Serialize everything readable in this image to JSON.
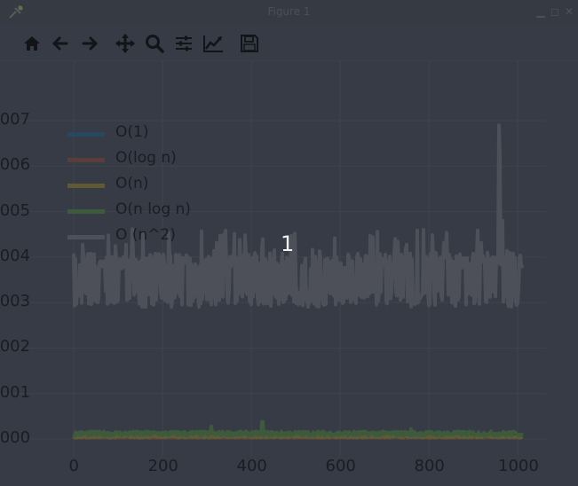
{
  "window": {
    "title": "Figure 1",
    "figure_number": "1",
    "controls": [
      "minimize-icon",
      "maximize-icon",
      "close-icon"
    ]
  },
  "toolbar": {
    "buttons": [
      {
        "name": "home-icon"
      },
      {
        "name": "back-arrow-icon"
      },
      {
        "name": "forward-arrow-icon"
      },
      {
        "name": "pan-icon"
      },
      {
        "name": "zoom-icon"
      },
      {
        "name": "subplots-icon"
      },
      {
        "name": "edit-axes-icon"
      },
      {
        "name": "save-icon"
      }
    ]
  },
  "colors": {
    "background": "#363b45",
    "grid": "#3f444e",
    "text": "#1a1d22",
    "O1": "#27485e",
    "Olog": "#5a3e3a",
    "On": "#5f5a33",
    "Onlogn": "#3e5a3d",
    "On2": "#4d5059"
  },
  "chart_data": {
    "type": "line",
    "title": "",
    "xlabel": "",
    "ylabel": "",
    "xlim": [
      -40,
      1110
    ],
    "ylim": [
      -0.0002,
      0.0075
    ],
    "xticks": [
      0,
      200,
      400,
      600,
      800,
      1000
    ],
    "xtick_labels": [
      "0",
      "200",
      "400",
      "600",
      "800",
      "1000"
    ],
    "yticks": [
      0.0,
      0.001,
      0.002,
      0.003,
      0.004,
      0.005,
      0.006,
      0.007
    ],
    "ytick_labels": [
      ".000",
      ".001",
      ".002",
      ".003",
      ".004",
      ".005",
      ".006",
      ".007"
    ],
    "legend_placement": "upper-left",
    "grid": true,
    "series": [
      {
        "name": "O(1)",
        "color": "#27485e",
        "baseline": 2e-05,
        "noise": 1e-05
      },
      {
        "name": "O(log n)",
        "color": "#5a3e3a",
        "baseline": 3e-05,
        "noise": 1e-05
      },
      {
        "name": "O(n)",
        "color": "#5f5a33",
        "baseline": 5e-05,
        "noise": 2e-05
      },
      {
        "name": "O(n log n)",
        "color": "#3e5a3d",
        "baseline": 0.00012,
        "noise": 5e-05,
        "spikes": [
          {
            "x": 310,
            "y": 0.00028
          },
          {
            "x": 425,
            "y": 0.00038
          },
          {
            "x": 760,
            "y": 0.00022
          }
        ]
      },
      {
        "name": "O (n^2)",
        "color": "#4d5059",
        "baseline": 0.0035,
        "noise": 0.0004,
        "x_max": 1010,
        "spikes": [
          {
            "x": 958,
            "y": 0.0069
          },
          {
            "x": 960,
            "y": 0.0062
          },
          {
            "x": 965,
            "y": 0.0048
          }
        ]
      }
    ]
  }
}
